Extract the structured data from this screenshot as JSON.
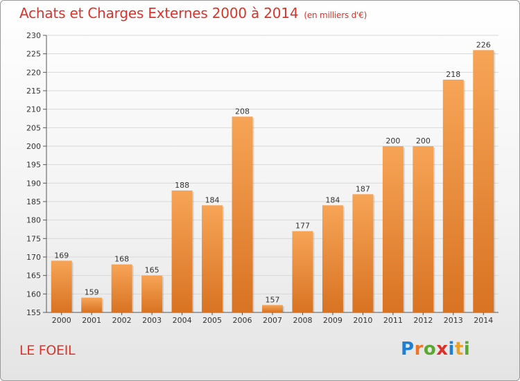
{
  "header": {
    "title": "Achats et Charges Externes 2000 à 2014",
    "unit": "(en milliers d'€)"
  },
  "footer": {
    "place": "LE FOEIL",
    "logo_letters": [
      "P",
      "r",
      "o",
      "x",
      "i",
      "t",
      "i"
    ]
  },
  "colors": {
    "title": "#d8342a",
    "bar_top": "#f7a457",
    "bar_bottom": "#d87322",
    "grid": "#d8d8d8"
  },
  "chart_data": {
    "type": "bar",
    "title": "Achats et Charges Externes 2000 à 2014",
    "subtitle": "(en milliers d'€)",
    "categories": [
      "2000",
      "2001",
      "2002",
      "2003",
      "2004",
      "2005",
      "2006",
      "2007",
      "2008",
      "2009",
      "2010",
      "2011",
      "2012",
      "2013",
      "2014"
    ],
    "values": [
      169,
      159,
      168,
      165,
      188,
      184,
      208,
      157,
      177,
      184,
      187,
      200,
      200,
      218,
      226
    ],
    "ylim": [
      155,
      230
    ],
    "ytick_step": 5,
    "grid": true,
    "legend": "none"
  }
}
